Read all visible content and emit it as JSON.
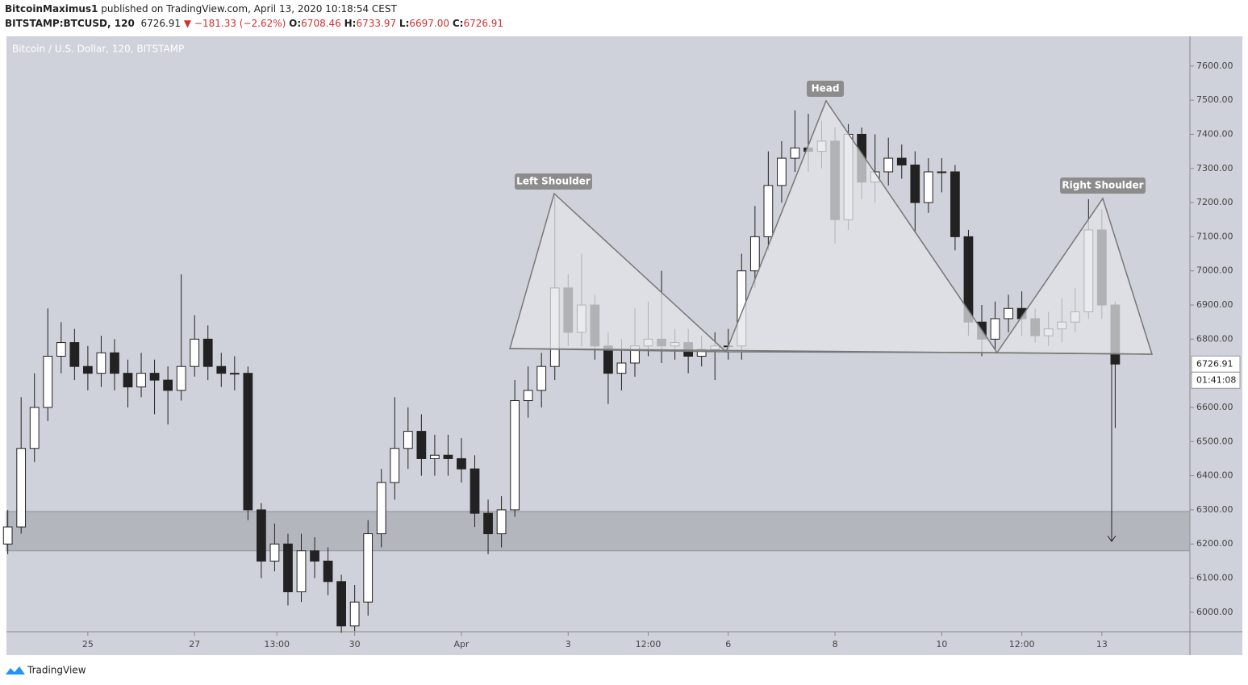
{
  "header": {
    "author": "BitcoinMaximus1",
    "published": "published on TradingView.com, April 13, 2020 10:18:54 CEST",
    "symbol": "BITSTAMP:BTCUSD, 120",
    "price": "6726.91",
    "change": "▼ −181.33 (−2.62%)",
    "o_label": "O:",
    "o": "6708.46",
    "h_label": "H:",
    "h": "6733.97",
    "l_label": "L:",
    "l": "6697.00",
    "c_label": "C:",
    "c": "6726.91"
  },
  "footer": {
    "brand": "TradingView"
  },
  "chart_data": {
    "type": "candlestick",
    "legend": "Bitcoin / U.S. Dollar, 120, BITSTAMP",
    "x": [
      -12,
      -6,
      0,
      6,
      12,
      18,
      24,
      30,
      36,
      42,
      48,
      54,
      60,
      66,
      72,
      78,
      84,
      90,
      96,
      102,
      108,
      114,
      120,
      126,
      132,
      138,
      144,
      150,
      156,
      162,
      168,
      174,
      180,
      186,
      192,
      198,
      204,
      210,
      216,
      222,
      228,
      234,
      240,
      246,
      252,
      258,
      264,
      270,
      276,
      282,
      288,
      294,
      300,
      306,
      312,
      318,
      324,
      330,
      336,
      342,
      348,
      354,
      360,
      366,
      372,
      378,
      384,
      390,
      396,
      402,
      408,
      414,
      420,
      426,
      432,
      438,
      444,
      450,
      456,
      462,
      468,
      474,
      480,
      486
    ],
    "open": [
      6200,
      6250,
      6480,
      6600,
      6750,
      6790,
      6720,
      6700,
      6760,
      6700,
      6660,
      6700,
      6680,
      6650,
      6720,
      6800,
      6720,
      6700,
      6700,
      6300,
      6150,
      6200,
      6060,
      6180,
      6150,
      6090,
      5960,
      6030,
      6230,
      6380,
      6480,
      6530,
      6450,
      6460,
      6450,
      6420,
      6290,
      6230,
      6300,
      6620,
      6650,
      6720,
      6950,
      6820,
      6900,
      6780,
      6700,
      6730,
      6780,
      6800,
      6780,
      6790,
      6750,
      6770,
      6780,
      6780,
      7000,
      7100,
      7250,
      7330,
      7360,
      7350,
      7380,
      7150,
      7400,
      7260,
      7290,
      7330,
      7310,
      7200,
      7290,
      7290,
      7100,
      6850,
      6800,
      6860,
      6890,
      6860,
      6810,
      6830,
      6850,
      6880,
      7120,
      6900
    ],
    "high": [
      6300,
      6630,
      6700,
      6890,
      6850,
      6830,
      6780,
      6810,
      6800,
      6740,
      6760,
      6740,
      6720,
      6990,
      6870,
      6840,
      6760,
      6750,
      6720,
      6320,
      6260,
      6230,
      6230,
      6220,
      6190,
      6110,
      6080,
      6270,
      6420,
      6630,
      6600,
      6580,
      6520,
      6520,
      6510,
      6460,
      6330,
      6340,
      6680,
      6720,
      6760,
      7220,
      6990,
      7050,
      6930,
      6820,
      6800,
      6890,
      6910,
      7000,
      6830,
      6830,
      6810,
      6820,
      6830,
      7050,
      7190,
      7350,
      7380,
      7470,
      7460,
      7440,
      7420,
      7430,
      7420,
      7400,
      7390,
      7370,
      7350,
      7330,
      7330,
      7310,
      7120,
      6900,
      6910,
      6930,
      6940,
      6890,
      6880,
      6920,
      6950,
      7210,
      7180,
      6910
    ],
    "low": [
      6170,
      6230,
      6440,
      6560,
      6700,
      6680,
      6650,
      6660,
      6650,
      6600,
      6630,
      6580,
      6550,
      6620,
      6690,
      6680,
      6660,
      6650,
      6270,
      6100,
      6120,
      6020,
      6030,
      6100,
      6050,
      5940,
      5945,
      5990,
      6190,
      6330,
      6420,
      6400,
      6400,
      6400,
      6380,
      6250,
      6170,
      6190,
      6280,
      6570,
      6600,
      6680,
      6780,
      6780,
      6740,
      6610,
      6650,
      6690,
      6750,
      6730,
      6740,
      6700,
      6720,
      6680,
      6740,
      6740,
      6950,
      7060,
      7200,
      7290,
      7290,
      7300,
      7080,
      7120,
      7210,
      7200,
      7250,
      7270,
      7110,
      7170,
      7230,
      7060,
      6810,
      6750,
      6770,
      6820,
      6810,
      6790,
      6780,
      6790,
      6820,
      6860,
      6860,
      6540
    ],
    "close": [
      6250,
      6480,
      6600,
      6750,
      6790,
      6720,
      6700,
      6760,
      6700,
      6660,
      6700,
      6680,
      6650,
      6720,
      6800,
      6720,
      6700,
      6700,
      6300,
      6150,
      6200,
      6060,
      6180,
      6150,
      6090,
      5960,
      6030,
      6230,
      6380,
      6480,
      6530,
      6450,
      6460,
      6450,
      6420,
      6290,
      6230,
      6300,
      6620,
      6650,
      6720,
      6950,
      6820,
      6900,
      6780,
      6700,
      6730,
      6780,
      6800,
      6780,
      6790,
      6750,
      6770,
      6780,
      6780,
      7000,
      7100,
      7250,
      7330,
      7360,
      7350,
      7380,
      7150,
      7400,
      7260,
      7290,
      7330,
      7310,
      7200,
      7290,
      7290,
      7100,
      6850,
      6800,
      6860,
      6890,
      6860,
      6810,
      6830,
      6850,
      6880,
      7120,
      6900,
      6727
    ],
    "xlim": [
      -12.6,
      519.6
    ],
    "xticks": [
      {
        "value": 24,
        "label": "25"
      },
      {
        "value": 72,
        "label": "27"
      },
      {
        "value": 109,
        "label": "13:00"
      },
      {
        "value": 144,
        "label": "30"
      },
      {
        "value": 192,
        "label": "Apr"
      },
      {
        "value": 240,
        "label": "3"
      },
      {
        "value": 276,
        "label": "12:00"
      },
      {
        "value": 312,
        "label": "6"
      },
      {
        "value": 360,
        "label": "8"
      },
      {
        "value": 408,
        "label": "10"
      },
      {
        "value": 444,
        "label": "12:00"
      },
      {
        "value": 480,
        "label": "13"
      }
    ],
    "ylim": [
      5943,
      7687
    ],
    "yticks": [
      {
        "value": 6000,
        "label": "6000.00"
      },
      {
        "value": 6100,
        "label": "6100.00"
      },
      {
        "value": 6200,
        "label": "6200.00"
      },
      {
        "value": 6300,
        "label": "6300.00"
      },
      {
        "value": 6400,
        "label": "6400.00"
      },
      {
        "value": 6500,
        "label": "6500.00"
      },
      {
        "value": 6600,
        "label": "6600.00"
      },
      {
        "value": 6700,
        "label": "6700.00"
      },
      {
        "value": 6800,
        "label": "6800.00"
      },
      {
        "value": 6900,
        "label": "6900.00"
      },
      {
        "value": 7000,
        "label": "7000.00"
      },
      {
        "value": 7100,
        "label": "7100.00"
      },
      {
        "value": 7200,
        "label": "7200.00"
      },
      {
        "value": 7300,
        "label": "7300.00"
      },
      {
        "value": 7400,
        "label": "7400.00"
      },
      {
        "value": 7500,
        "label": "7500.00"
      },
      {
        "value": 7600,
        "label": "7600.00"
      }
    ],
    "support_zone": [
      6180,
      6295
    ],
    "last_price": 6726.91,
    "countdown": "01:41:08",
    "annotations": [
      "Left Shoulder",
      "Head",
      "Right Shoulder"
    ]
  }
}
